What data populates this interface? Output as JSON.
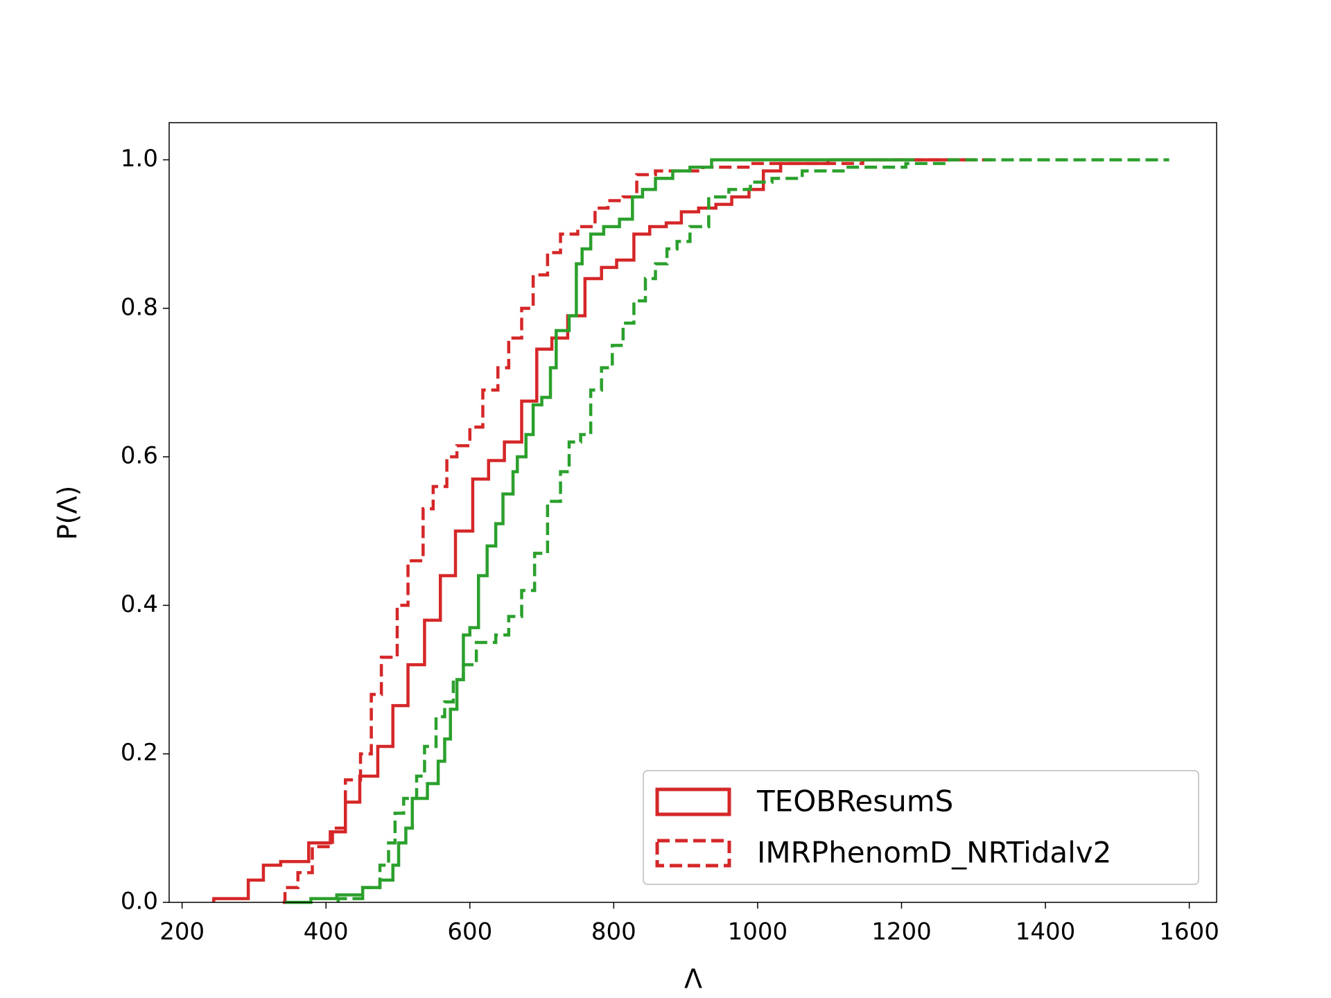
{
  "chart_data": {
    "type": "step",
    "x_label": "Λ",
    "y_label": "P(Λ)",
    "xlim": [
      182,
      1638
    ],
    "ylim": [
      0,
      1.05
    ],
    "xticks": [
      200,
      400,
      600,
      800,
      1000,
      1200,
      1400,
      1600
    ],
    "yticks": [
      {
        "value": 0,
        "label": "0.0"
      },
      {
        "value": 0.2,
        "label": "0.2"
      },
      {
        "value": 0.4,
        "label": "0.4"
      },
      {
        "value": 0.6,
        "label": "0.6"
      },
      {
        "value": 0.8,
        "label": "0.8"
      },
      {
        "value": 1,
        "label": "1.0"
      }
    ],
    "legend": "lower right",
    "series": [
      {
        "name": "TEOBResumS",
        "color": "#d62728",
        "linestyle": "solid",
        "x": [
          244,
          292,
          313,
          337,
          376,
          406,
          427,
          447,
          472,
          493,
          514,
          537,
          559,
          580,
          604,
          626,
          648,
          672,
          693,
          714,
          736,
          760,
          783,
          804,
          828,
          850,
          873,
          894,
          918,
          942,
          964,
          988,
          1008,
          1032,
          1098,
          1302
        ],
        "values": [
          0.005,
          0.03,
          0.05,
          0.055,
          0.08,
          0.095,
          0.135,
          0.17,
          0.21,
          0.265,
          0.32,
          0.38,
          0.44,
          0.5,
          0.57,
          0.595,
          0.62,
          0.675,
          0.745,
          0.76,
          0.79,
          0.84,
          0.855,
          0.865,
          0.9,
          0.91,
          0.915,
          0.93,
          0.935,
          0.94,
          0.95,
          0.96,
          0.985,
          0.995,
          1.0,
          1.0
        ]
      },
      {
        "name": "IMRPhenomD_NRTidalv2",
        "color": "#d62728",
        "linestyle": "dashed",
        "x": [
          340,
          343,
          361,
          381,
          409,
          427,
          448,
          463,
          477,
          499,
          514,
          535,
          549,
          568,
          582,
          600,
          618,
          639,
          654,
          672,
          688,
          708,
          726,
          750,
          774,
          792,
          813,
          832,
          858,
          924,
          990,
          1146,
          1326
        ],
        "values": [
          0,
          0.02,
          0.04,
          0.075,
          0.1,
          0.165,
          0.2,
          0.28,
          0.33,
          0.4,
          0.46,
          0.53,
          0.56,
          0.6,
          0.615,
          0.64,
          0.69,
          0.72,
          0.76,
          0.8,
          0.845,
          0.875,
          0.9,
          0.91,
          0.935,
          0.945,
          0.95,
          0.98,
          0.985,
          0.99,
          0.995,
          1.0,
          1.0
        ]
      },
      {
        "color": "#2ca02c",
        "linestyle": "solid",
        "x": [
          343,
          379,
          415,
          451,
          475,
          493,
          501,
          511,
          520,
          541,
          556,
          565,
          573,
          582,
          591,
          600,
          612,
          624,
          636,
          646,
          660,
          666,
          678,
          688,
          700,
          712,
          720,
          738,
          748,
          756,
          768,
          786,
          808,
          826,
          840,
          858,
          882,
          906,
          936,
          1218
        ],
        "values": [
          0,
          0.005,
          0.01,
          0.02,
          0.03,
          0.05,
          0.08,
          0.1,
          0.14,
          0.16,
          0.19,
          0.22,
          0.26,
          0.3,
          0.36,
          0.37,
          0.44,
          0.48,
          0.51,
          0.55,
          0.58,
          0.6,
          0.63,
          0.67,
          0.68,
          0.72,
          0.77,
          0.79,
          0.86,
          0.88,
          0.9,
          0.91,
          0.92,
          0.95,
          0.96,
          0.975,
          0.985,
          0.99,
          1.0,
          1.0
        ]
      },
      {
        "color": "#2ca02c",
        "linestyle": "dashed",
        "x": [
          417,
          451,
          475,
          487,
          496,
          508,
          526,
          537,
          553,
          565,
          577,
          591,
          609,
          636,
          654,
          672,
          690,
          708,
          726,
          738,
          754,
          768,
          783,
          798,
          813,
          828,
          844,
          858,
          874,
          888,
          906,
          932,
          960,
          990,
          1020,
          1062,
          1122,
          1206,
          1266,
          1572
        ],
        "values": [
          0.005,
          0.02,
          0.05,
          0.08,
          0.12,
          0.14,
          0.17,
          0.21,
          0.25,
          0.27,
          0.3,
          0.32,
          0.35,
          0.36,
          0.385,
          0.42,
          0.47,
          0.54,
          0.58,
          0.62,
          0.63,
          0.69,
          0.72,
          0.75,
          0.78,
          0.81,
          0.84,
          0.86,
          0.88,
          0.89,
          0.91,
          0.95,
          0.96,
          0.97,
          0.975,
          0.985,
          0.99,
          0.995,
          1.0,
          1.0
        ]
      }
    ]
  }
}
